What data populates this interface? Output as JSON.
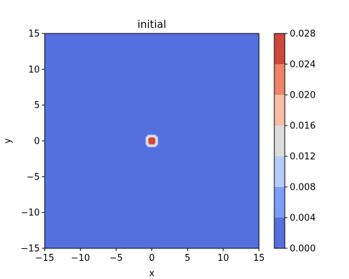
{
  "chart_data": {
    "type": "heatmap",
    "subtype": "filled-contour",
    "title": "initial",
    "xlabel": "x",
    "ylabel": "y",
    "xlim": [
      -15,
      15
    ],
    "ylim": [
      -15,
      15
    ],
    "x_ticks": [
      -15,
      -10,
      -5,
      0,
      5,
      10,
      15
    ],
    "y_ticks": [
      -15,
      -10,
      -5,
      0,
      5,
      10,
      15
    ],
    "x_tick_labels": [
      "−15",
      "−10",
      "−5",
      "0",
      "5",
      "10",
      "15"
    ],
    "y_tick_labels": [
      "−15",
      "−10",
      "−5",
      "0",
      "5",
      "10",
      "15"
    ],
    "background_level": [
      0.0,
      0.004
    ],
    "peak": {
      "x": 0,
      "y": 0,
      "max_value": 0.028
    },
    "contour_rings": [
      {
        "level": [
          0.004,
          0.008
        ],
        "half_width": 0.9
      },
      {
        "level": [
          0.008,
          0.012
        ],
        "half_width": 0.85
      },
      {
        "level": [
          0.012,
          0.016
        ],
        "half_width": 0.8
      },
      {
        "level": [
          0.016,
          0.02
        ],
        "half_width": 0.55
      },
      {
        "level": [
          0.02,
          0.024
        ],
        "half_width": 0.5
      },
      {
        "level": [
          0.024,
          0.028
        ],
        "half_width": 0.45
      }
    ],
    "colorbar": {
      "levels": [
        0.0,
        0.004,
        0.008,
        0.012,
        0.016,
        0.02,
        0.024,
        0.028
      ],
      "tick_labels": [
        "0.000",
        "0.004",
        "0.008",
        "0.012",
        "0.016",
        "0.020",
        "0.024",
        "0.028"
      ],
      "colors": [
        "#5470de",
        "#7b9ff9",
        "#b5cdfa",
        "#dddcdc",
        "#f6bfa6",
        "#ee8468",
        "#d0473d"
      ]
    },
    "colormap": "coolwarm"
  }
}
